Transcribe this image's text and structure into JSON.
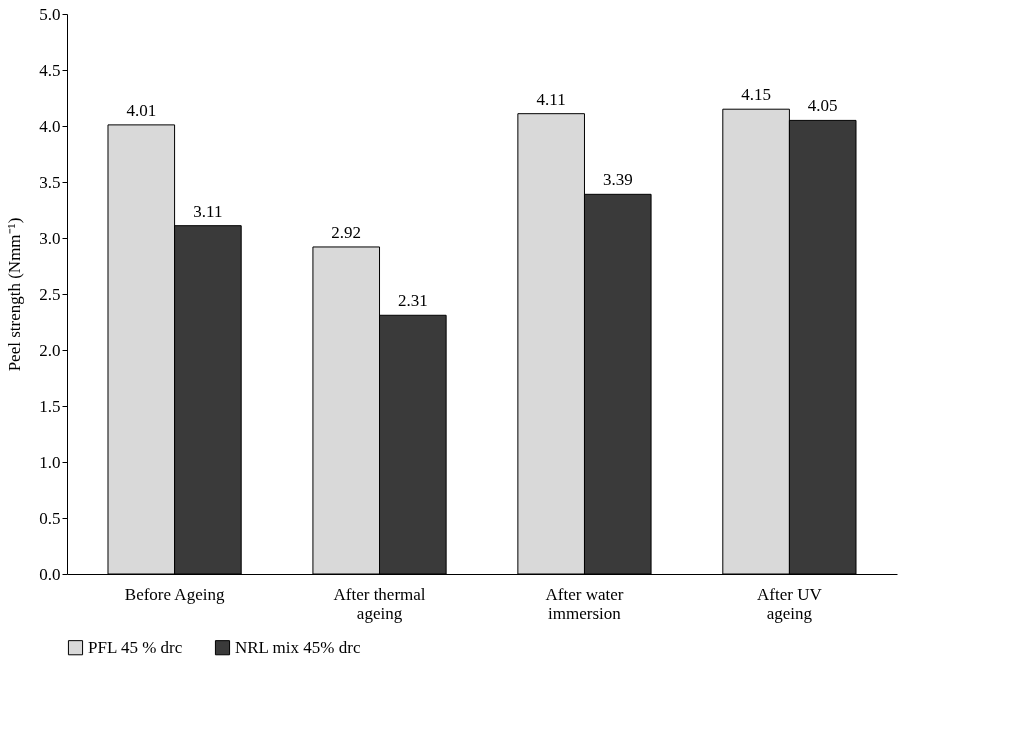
{
  "chart_data": {
    "type": "bar",
    "ylabel": "Peel strength (Nmm⁻¹)",
    "categories": [
      "Before Ageing",
      "After thermal ageing",
      "After water immersion",
      "After UV ageing"
    ],
    "series": [
      {
        "name": "PFL 45 % drc",
        "color": "#d9d9d9",
        "values": [
          4.01,
          2.92,
          4.11,
          4.15
        ]
      },
      {
        "name": "NRL mix 45% drc",
        "color": "#3a3a3a",
        "values": [
          3.11,
          2.31,
          3.39,
          4.05
        ]
      }
    ],
    "ylim": [
      0,
      5
    ],
    "yticks": [
      {
        "value": 0,
        "label": "0.0"
      },
      {
        "value": 0.5,
        "label": "0.5"
      },
      {
        "value": 1,
        "label": "1.0"
      },
      {
        "value": 1.5,
        "label": "1.5"
      },
      {
        "value": 2,
        "label": "2.0"
      },
      {
        "value": 2.5,
        "label": "2.5"
      },
      {
        "value": 3,
        "label": "3.0"
      },
      {
        "value": 3.5,
        "label": "3.5"
      },
      {
        "value": 4,
        "label": "4.0"
      },
      {
        "value": 4.5,
        "label": "4.5"
      },
      {
        "value": 5,
        "label": "5.0"
      }
    ],
    "data_labels": true,
    "grid": false,
    "legend": "bottom"
  }
}
